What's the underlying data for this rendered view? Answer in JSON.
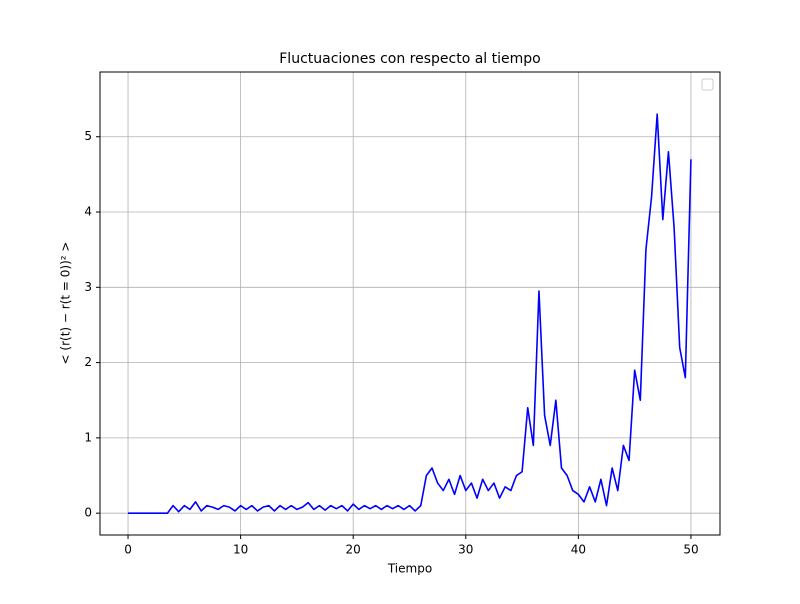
{
  "chart_data": {
    "type": "line",
    "title": "Fluctuaciones con respecto al tiempo",
    "x_label": "Tiempo",
    "y_label": "< (r(t) − r(t = 0))² >",
    "x": [
      0,
      0.5,
      1,
      1.5,
      2,
      2.5,
      3,
      3.5,
      4,
      4.5,
      5,
      5.5,
      6,
      6.5,
      7,
      7.5,
      8,
      8.5,
      9,
      9.5,
      10,
      10.5,
      11,
      11.5,
      12,
      12.5,
      13,
      13.5,
      14,
      14.5,
      15,
      15.5,
      16,
      16.5,
      17,
      17.5,
      18,
      18.5,
      19,
      19.5,
      20,
      20.5,
      21,
      21.5,
      22,
      22.5,
      23,
      23.5,
      24,
      24.5,
      25,
      25.5,
      26,
      26.5,
      27,
      27.5,
      28,
      28.5,
      29,
      29.5,
      30,
      30.5,
      31,
      31.5,
      32,
      32.5,
      33,
      33.5,
      34,
      34.5,
      35,
      35.5,
      36,
      36.5,
      37,
      37.5,
      38,
      38.5,
      39,
      39.5,
      40,
      40.5,
      41,
      41.5,
      42,
      42.5,
      43,
      43.5,
      44,
      44.5,
      45,
      45.5,
      46,
      46.5,
      47,
      47.5,
      48,
      48.5,
      49,
      49.5,
      50
    ],
    "series": [
      {
        "color": "#0000ff",
        "values": [
          0,
          0,
          0,
          0,
          0,
          0,
          0,
          0,
          0.1,
          0.02,
          0.1,
          0.05,
          0.15,
          0.03,
          0.1,
          0.08,
          0.05,
          0.1,
          0.08,
          0.03,
          0.1,
          0.05,
          0.1,
          0.03,
          0.08,
          0.1,
          0.03,
          0.1,
          0.05,
          0.1,
          0.05,
          0.08,
          0.14,
          0.05,
          0.1,
          0.04,
          0.1,
          0.06,
          0.1,
          0.03,
          0.12,
          0.05,
          0.1,
          0.06,
          0.1,
          0.05,
          0.1,
          0.06,
          0.1,
          0.05,
          0.1,
          0.03,
          0.1,
          0.5,
          0.6,
          0.4,
          0.3,
          0.45,
          0.25,
          0.5,
          0.3,
          0.4,
          0.2,
          0.45,
          0.3,
          0.4,
          0.2,
          0.35,
          0.3,
          0.5,
          0.55,
          1.4,
          0.9,
          2.95,
          1.3,
          0.9,
          1.5,
          0.6,
          0.5,
          0.3,
          0.25,
          0.15,
          0.35,
          0.15,
          0.45,
          0.1,
          0.6,
          0.3,
          0.9,
          0.7,
          1.9,
          1.5,
          3.5,
          4.2,
          5.3,
          3.9,
          4.8,
          3.8,
          2.2,
          1.8,
          4.7
        ]
      }
    ],
    "xlim": [
      -2.49,
      52.58
    ],
    "ylim": [
      -0.29,
      5.86
    ],
    "xticks": [
      0,
      10,
      20,
      30,
      40,
      50
    ],
    "yticks": [
      0,
      1,
      2,
      3,
      4,
      5
    ],
    "grid": true
  }
}
